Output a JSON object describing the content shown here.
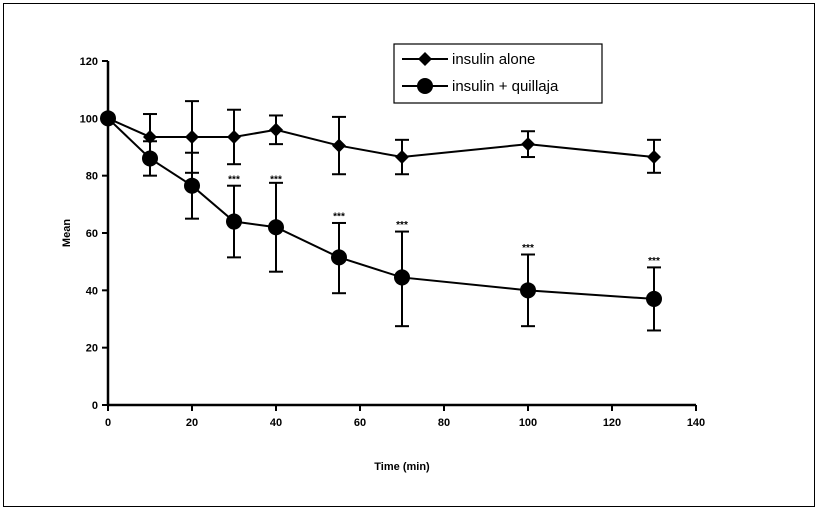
{
  "chart_data": {
    "type": "line",
    "xlabel": "Time (min)",
    "ylabel": "Mean",
    "xlim": [
      0,
      140
    ],
    "ylim": [
      0,
      120
    ],
    "xticks": [
      0,
      20,
      40,
      60,
      80,
      100,
      120,
      140
    ],
    "yticks": [
      0,
      20,
      40,
      60,
      80,
      100,
      120
    ],
    "grid": false,
    "legend_position": "top-right",
    "series": [
      {
        "name": "insulin alone",
        "marker": "diamond",
        "x": [
          0,
          10,
          20,
          30,
          40,
          55,
          70,
          100,
          130
        ],
        "y": [
          100,
          93.5,
          93.5,
          93.5,
          96,
          90.5,
          86.5,
          91,
          86.5
        ],
        "err_upper": [
          100,
          101.5,
          106,
          103,
          101,
          100.5,
          92.5,
          95.5,
          92.5
        ],
        "err_lower": [
          100,
          85.5,
          81,
          84,
          91,
          80.5,
          80.5,
          86.5,
          81
        ]
      },
      {
        "name": "insulin + quillaja",
        "marker": "circle",
        "x": [
          0,
          10,
          20,
          30,
          40,
          55,
          70,
          100,
          130
        ],
        "y": [
          100,
          86,
          76.5,
          64,
          62,
          51.5,
          44.5,
          40,
          37
        ],
        "err_upper": [
          100,
          92,
          88,
          76.5,
          77.5,
          63.5,
          60.5,
          52.5,
          48
        ],
        "err_lower": [
          100,
          80,
          65,
          51.5,
          46.5,
          39,
          27.5,
          27.5,
          26
        ]
      }
    ],
    "annotations": [
      {
        "text": "***",
        "x": 30,
        "y": 77
      },
      {
        "text": "***",
        "x": 40,
        "y": 77
      },
      {
        "text": "***",
        "x": 55,
        "y": 64
      },
      {
        "text": "***",
        "x": 70,
        "y": 61
      },
      {
        "text": "***",
        "x": 100,
        "y": 53
      },
      {
        "text": "***",
        "x": 130,
        "y": 48.5
      }
    ]
  }
}
